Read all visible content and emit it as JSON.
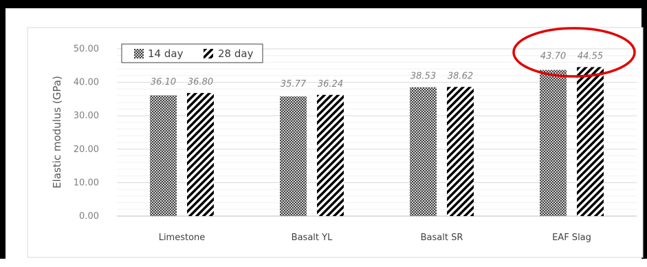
{
  "chart_data": {
    "type": "bar",
    "title": "",
    "xlabel": "",
    "ylabel": "Elastic modulus (GPa)",
    "ylim": [
      0,
      50
    ],
    "yticks": [
      "0.00",
      "10.00",
      "20.00",
      "30.00",
      "40.00",
      "50.00"
    ],
    "categories": [
      "Limestone",
      "Basalt YL",
      "Basalt SR",
      "EAF Slag"
    ],
    "series": [
      {
        "name": "14 day",
        "values": [
          36.1,
          35.77,
          38.53,
          43.7
        ],
        "labels": [
          "36.10",
          "35.77",
          "38.53",
          "43.70"
        ],
        "pattern": "dense-crosshatch"
      },
      {
        "name": "28 day",
        "values": [
          36.8,
          36.24,
          38.62,
          44.55
        ],
        "labels": [
          "36.80",
          "36.24",
          "38.62",
          "44.55"
        ],
        "pattern": "wide-diagonal"
      }
    ],
    "legend_position": "top-left",
    "grid": true,
    "highlight": {
      "category": "EAF Slag",
      "shape": "ellipse",
      "color": "#e00000"
    }
  }
}
